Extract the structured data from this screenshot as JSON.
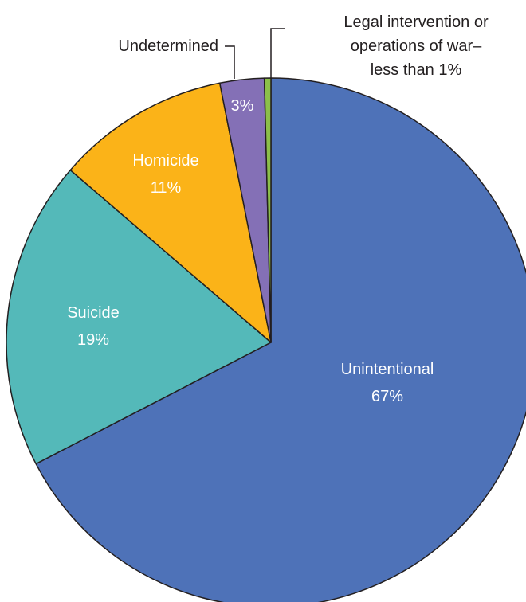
{
  "chart_data": {
    "type": "pie",
    "title": "",
    "start_angle_deg": 0,
    "direction": "clockwise",
    "slices": [
      {
        "key": "unintentional",
        "label": "Unintentional",
        "value_label": "67%",
        "value": 67.4,
        "color": "#4e72b8"
      },
      {
        "key": "suicide",
        "label": "Suicide",
        "value_label": "19%",
        "value": 18.9,
        "color": "#54b9b9"
      },
      {
        "key": "homicide",
        "label": "Homicide",
        "value_label": "11%",
        "value": 10.6,
        "color": "#fbb318"
      },
      {
        "key": "undetermined",
        "label": "Undetermined",
        "value_label": "3%",
        "value": 2.7,
        "color": "#8470b6"
      },
      {
        "key": "legal",
        "label": "Legal intervention or operations of war– less than 1%",
        "value_label": "",
        "value": 0.4,
        "color": "#8cbf4a"
      }
    ],
    "annotations": {
      "undetermined_callout": "Undetermined",
      "legal_callout_lines": [
        "Legal intervention or",
        "operations of war–",
        "less than 1%"
      ]
    }
  }
}
